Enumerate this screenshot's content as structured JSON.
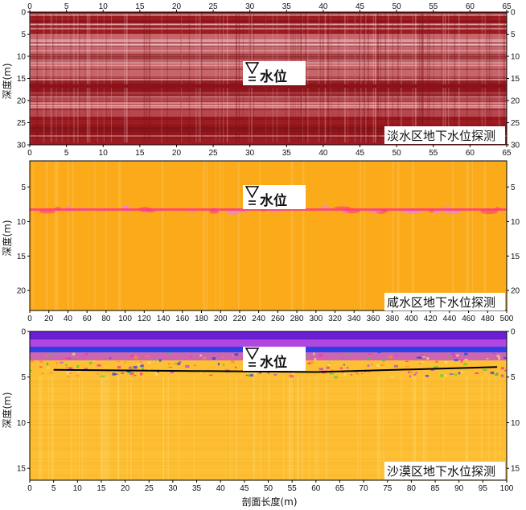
{
  "panels": [
    {
      "id": "fresh",
      "caption": "淡水区地下水位探测",
      "ylabel": "深度(m)",
      "x_ticks": [
        "0",
        "5",
        "10",
        "15",
        "20",
        "25",
        "30",
        "35",
        "40",
        "45",
        "50",
        "55",
        "60",
        "65"
      ],
      "x_range": [
        0,
        65
      ],
      "y_ticks": [
        "0",
        "5",
        "10",
        "15",
        "20",
        "25",
        "30"
      ],
      "y_range": [
        0,
        30
      ],
      "water_level_label": "水位",
      "water_level_depth": 17.3,
      "palette": {
        "base": "#9c1c22",
        "light": "#f4c6c8",
        "mid": "#c8545a"
      }
    },
    {
      "id": "saline",
      "caption": "咸水区地下水位探测",
      "ylabel": "深度(m)",
      "x_ticks": [
        "0",
        "20",
        "40",
        "60",
        "80",
        "100",
        "120",
        "140",
        "160",
        "180",
        "200",
        "220",
        "240",
        "260",
        "280",
        "300",
        "320",
        "340",
        "360",
        "380",
        "400",
        "420",
        "440",
        "460",
        "480",
        "500"
      ],
      "x_range": [
        0,
        500
      ],
      "y_ticks": [
        "5",
        "10",
        "15",
        "20"
      ],
      "y_range": [
        1.2,
        22.9
      ],
      "water_level_label": "水位",
      "water_level_depth": 7.7,
      "palette": {
        "base": "#fbab19",
        "band": "#ff3c78",
        "light": "#ffc870"
      }
    },
    {
      "id": "desert",
      "caption": "沙漠区地下水位探测",
      "ylabel": "深度(m)",
      "xlabel": "剖面长度(m)",
      "x_ticks": [
        "0",
        "5",
        "10",
        "15",
        "20",
        "25",
        "30",
        "35",
        "40",
        "45",
        "50",
        "55",
        "60",
        "65",
        "70",
        "75",
        "80",
        "85",
        "90",
        "95",
        "100"
      ],
      "x_range": [
        0,
        100
      ],
      "y_ticks": [
        "0",
        "5",
        "10",
        "15"
      ],
      "y_range": [
        0,
        16.3
      ],
      "water_level_label": "水位",
      "water_level_line": [
        [
          5,
          4.2
        ],
        [
          60,
          4.45
        ],
        [
          98,
          3.9
        ]
      ],
      "palette": {
        "base": "#fdbf33",
        "top1": "#6a1fd0",
        "top2": "#b048e0",
        "top3": "#3040e8",
        "mix1": "#2bd83a",
        "mix2": "#ff2aa8",
        "light": "#ffe07a"
      }
    }
  ]
}
